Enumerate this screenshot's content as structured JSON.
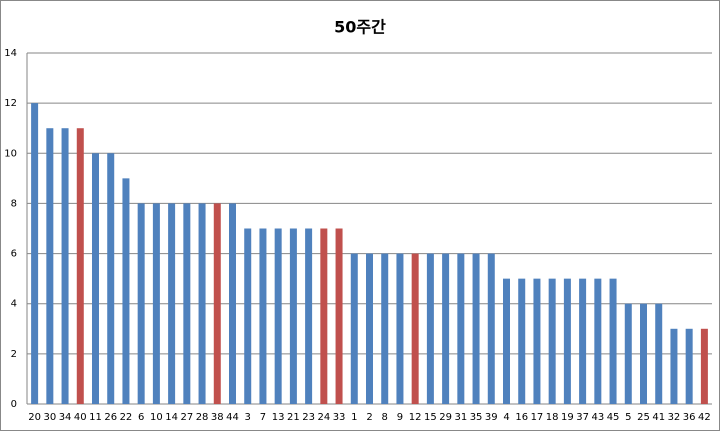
{
  "chart_data": {
    "type": "bar",
    "title": "50주간",
    "categories": [
      "20",
      "30",
      "34",
      "40",
      "11",
      "26",
      "22",
      "6",
      "10",
      "14",
      "27",
      "28",
      "38",
      "44",
      "3",
      "7",
      "13",
      "21",
      "23",
      "24",
      "33",
      "1",
      "2",
      "8",
      "9",
      "12",
      "15",
      "29",
      "31",
      "35",
      "39",
      "4",
      "16",
      "17",
      "18",
      "19",
      "37",
      "43",
      "45",
      "5",
      "25",
      "41",
      "32",
      "36",
      "42"
    ],
    "values": [
      12,
      11,
      11,
      11,
      10,
      10,
      9,
      8,
      8,
      8,
      8,
      8,
      8,
      8,
      7,
      7,
      7,
      7,
      7,
      7,
      7,
      6,
      6,
      6,
      6,
      6,
      6,
      6,
      6,
      6,
      6,
      5,
      5,
      5,
      5,
      5,
      5,
      5,
      5,
      4,
      4,
      4,
      3,
      3,
      3
    ],
    "colors": [
      "#4f81bd",
      "#4f81bd",
      "#4f81bd",
      "#c0504d",
      "#4f81bd",
      "#4f81bd",
      "#4f81bd",
      "#4f81bd",
      "#4f81bd",
      "#4f81bd",
      "#4f81bd",
      "#4f81bd",
      "#c0504d",
      "#4f81bd",
      "#4f81bd",
      "#4f81bd",
      "#4f81bd",
      "#4f81bd",
      "#4f81bd",
      "#c0504d",
      "#c0504d",
      "#4f81bd",
      "#4f81bd",
      "#4f81bd",
      "#4f81bd",
      "#c0504d",
      "#4f81bd",
      "#4f81bd",
      "#4f81bd",
      "#4f81bd",
      "#4f81bd",
      "#4f81bd",
      "#4f81bd",
      "#4f81bd",
      "#4f81bd",
      "#4f81bd",
      "#4f81bd",
      "#4f81bd",
      "#4f81bd",
      "#4f81bd",
      "#4f81bd",
      "#4f81bd",
      "#4f81bd",
      "#4f81bd",
      "#c0504d"
    ],
    "ylim": [
      0,
      14
    ],
    "yticks": [
      0,
      2,
      4,
      6,
      8,
      10,
      12,
      14
    ],
    "grid": true
  }
}
